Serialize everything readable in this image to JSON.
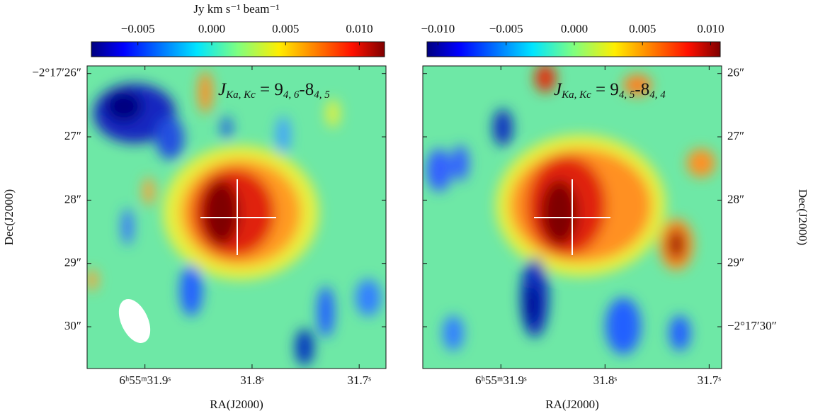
{
  "chart_data": [
    {
      "type": "heatmap",
      "colorbar_label": "Jy km s⁻¹ beam⁻¹",
      "clim": [
        -0.00815,
        0.0117
      ],
      "cticks": [
        {
          "value": -0.005,
          "label": "−0.005"
        },
        {
          "value": 0,
          "label": "0.000"
        },
        0.005,
        {
          "value": 0.01,
          "label": "0.010"
        }
      ],
      "xlim": [
        31.954,
        31.675
      ],
      "xticks": [
        {
          "value": 31.9,
          "label": "6ʰ55ᵐ31.9ˢ"
        },
        {
          "value": 31.8,
          "label": "31.8ˢ"
        },
        {
          "value": 31.7,
          "label": "31.7ˢ"
        }
      ],
      "ylim": [
        25.88,
        30.66
      ],
      "yticks": [
        {
          "value": 26,
          "label": "−2°17′26″"
        },
        {
          "value": 27,
          "label": "27″"
        },
        {
          "value": 28,
          "label": "28″"
        },
        {
          "value": 29,
          "label": "29″"
        },
        {
          "value": 30,
          "label": "30″"
        }
      ],
      "yaxis_side": "left",
      "xlabel": "RA(J2000)",
      "ylabel": "Dec(J2000)",
      "annotation": [
        {
          "text": "J"
        },
        {
          "text": "Ka, Kc",
          "sub": true
        },
        {
          "text": " = 9"
        },
        {
          "text": "4, 6",
          "sub": true
        },
        {
          "text": "-8"
        },
        {
          "text": "4, 5",
          "sub": true
        }
      ]
    },
    {
      "type": "heatmap",
      "clim": [
        -0.0108,
        0.0107
      ],
      "cticks": [
        {
          "value": -0.01,
          "label": "−0.010"
        },
        {
          "value": -0.005,
          "label": "−0.005"
        },
        {
          "value": 0,
          "label": "0.000"
        },
        0.005,
        {
          "value": 0.01,
          "label": "0.010"
        }
      ],
      "xlim": [
        31.975,
        31.688
      ],
      "xticks": [
        {
          "value": 31.9,
          "label": "6ʰ55ᵐ31.9ˢ"
        },
        {
          "value": 31.8,
          "label": "31.8ˢ"
        },
        {
          "value": 31.7,
          "label": "31.7ˢ"
        }
      ],
      "ylim": [
        25.88,
        30.66
      ],
      "yticks": [
        {
          "value": 26,
          "label": "26″"
        },
        {
          "value": 27,
          "label": "27″"
        },
        {
          "value": 28,
          "label": "28″"
        },
        {
          "value": 29,
          "label": "29″"
        },
        {
          "value": 30,
          "label": "−2°17′30″"
        }
      ],
      "yaxis_side": "right",
      "xlabel": "RA(J2000)",
      "ylabel": "Dec(J2000)",
      "annotation": [
        {
          "text": "J"
        },
        {
          "text": "Ka, Kc",
          "sub": true
        },
        {
          "text": " = 9"
        },
        {
          "text": "4, 5",
          "sub": true
        },
        {
          "text": "-8"
        },
        {
          "text": "4, 4",
          "sub": true
        }
      ]
    }
  ]
}
